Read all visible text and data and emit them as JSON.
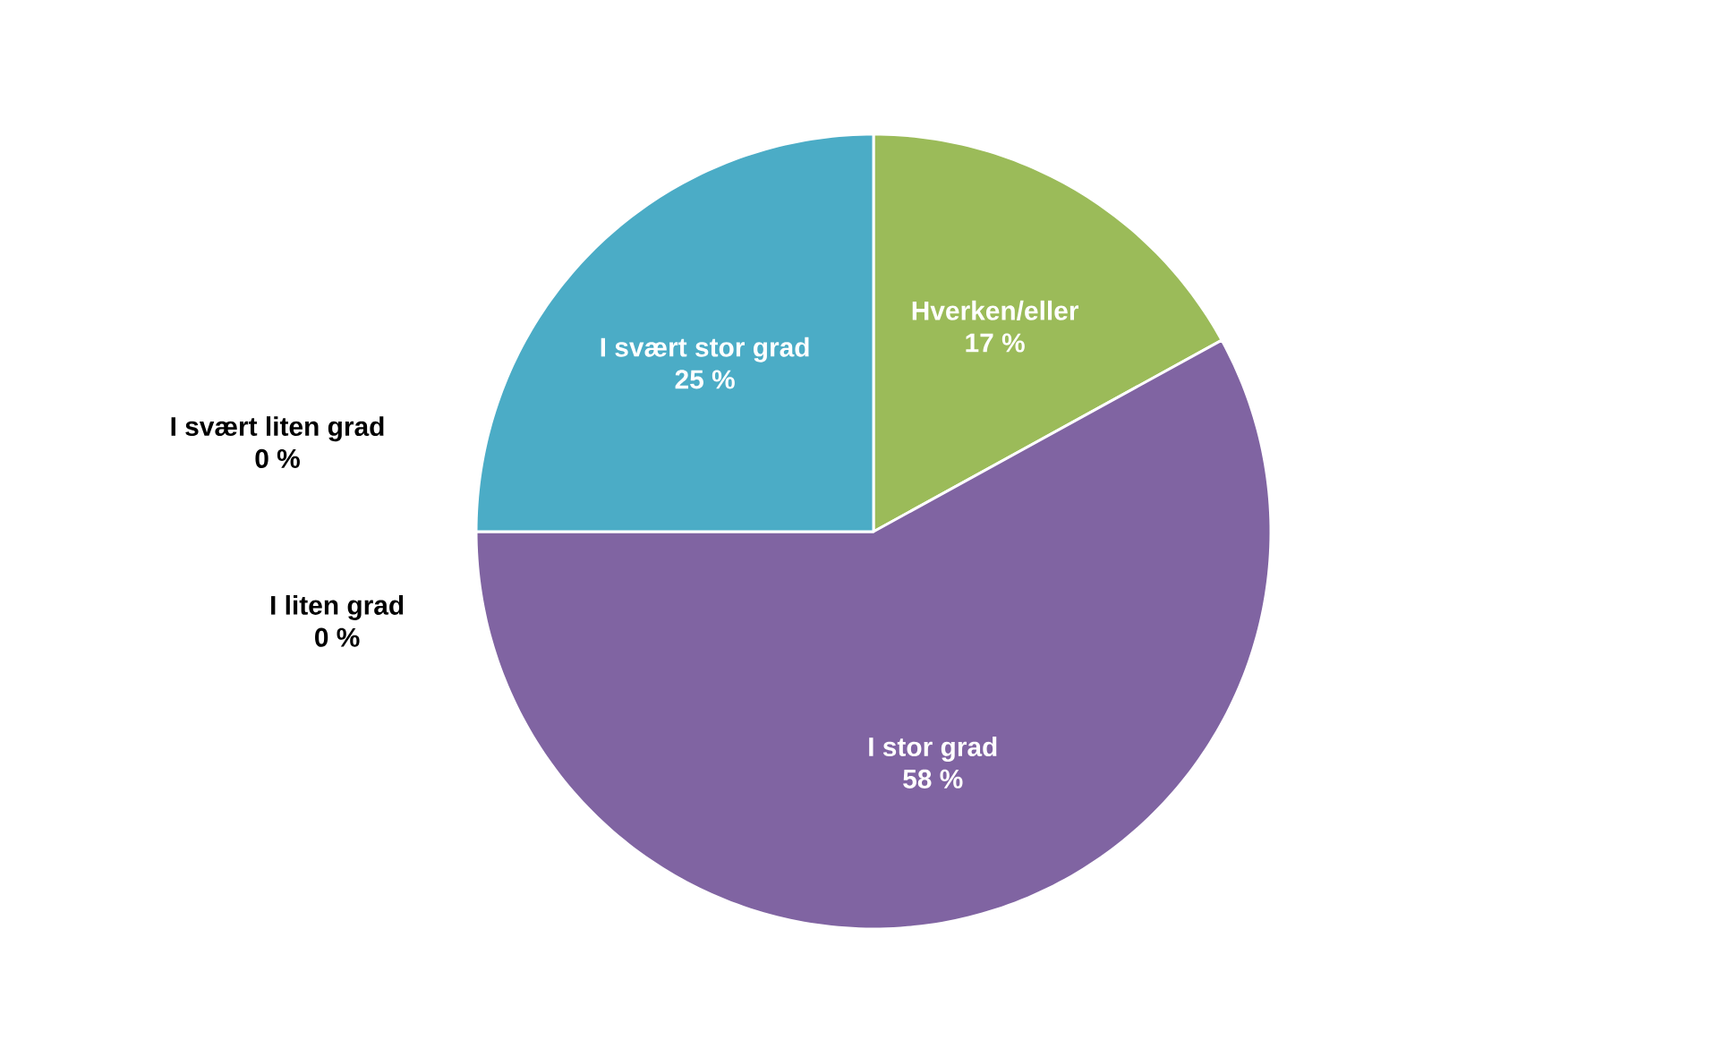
{
  "chart_data": {
    "type": "pie",
    "categories": [
      "Hverken/eller",
      "I stor grad",
      "I liten grad",
      "I svært liten grad",
      "I svært stor grad"
    ],
    "values": [
      17,
      58,
      0,
      0,
      25
    ],
    "value_labels": [
      "17 %",
      "58 %",
      "0 %",
      "0 %",
      "25 %"
    ],
    "colors": [
      "#9bbb59",
      "#8064a2",
      "#c0504d",
      "#f79646",
      "#4bacc6"
    ]
  }
}
